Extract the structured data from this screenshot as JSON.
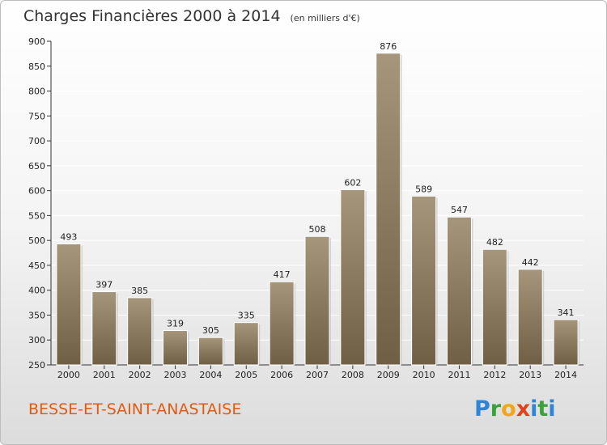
{
  "header": {
    "title": "Charges Financières 2000 à 2014",
    "subtitle": "(en milliers d'€)"
  },
  "footer": {
    "commune": "BESSE-ET-SAINT-ANASTAISE",
    "logo": "Proxiti"
  },
  "colors": {
    "bar_top": "#a5967c",
    "bar_bottom": "#6f5f44",
    "commune": "#e05a14",
    "grid": "#ffffff"
  },
  "chart_data": {
    "type": "bar",
    "title": "Charges Financières 2000 à 2014",
    "subtitle": "(en milliers d'€)",
    "categories": [
      "2000",
      "2001",
      "2002",
      "2003",
      "2004",
      "2005",
      "2006",
      "2007",
      "2008",
      "2009",
      "2010",
      "2011",
      "2012",
      "2013",
      "2014"
    ],
    "values": [
      493,
      397,
      385,
      319,
      305,
      335,
      417,
      508,
      602,
      876,
      589,
      547,
      482,
      442,
      341
    ],
    "ylim": [
      250,
      900
    ],
    "yticks": [
      250,
      300,
      350,
      400,
      450,
      500,
      550,
      600,
      650,
      700,
      750,
      800,
      850,
      900
    ],
    "grid": true,
    "data_labels": true
  }
}
